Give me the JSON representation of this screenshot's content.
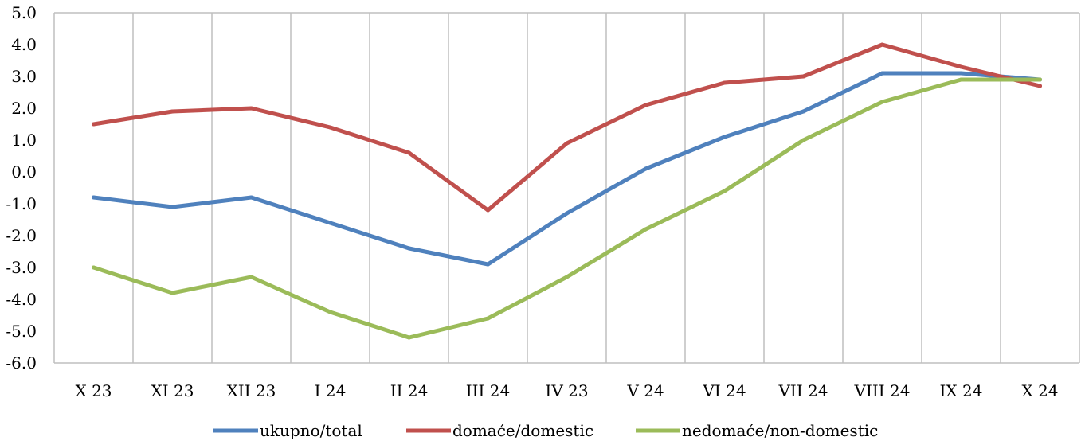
{
  "chart_data": {
    "type": "line",
    "categories": [
      "X 23",
      "XI 23",
      "XII 23",
      "I 24",
      "II 24",
      "III 24",
      "IV 23",
      "V 24",
      "VI 24",
      "VII 24",
      "VIII 24",
      "IX 24",
      "X 24"
    ],
    "series": [
      {
        "name": "ukupno/total",
        "color": "#4F81BD",
        "values": [
          -0.8,
          -1.1,
          -0.8,
          -1.6,
          -2.4,
          -2.9,
          -1.3,
          0.1,
          1.1,
          1.9,
          3.1,
          3.1,
          2.9
        ]
      },
      {
        "name": "domaće/domestic",
        "color": "#C0504D",
        "values": [
          1.5,
          1.9,
          2.0,
          1.4,
          0.6,
          -1.2,
          0.9,
          2.1,
          2.8,
          3.0,
          4.0,
          3.3,
          2.7
        ]
      },
      {
        "name": "nedomaće/non-domestic",
        "color": "#9BBB59",
        "values": [
          -3.0,
          -3.8,
          -3.3,
          -4.4,
          -5.2,
          -4.6,
          -3.3,
          -1.8,
          -0.6,
          1.0,
          2.2,
          2.9,
          2.9
        ]
      }
    ],
    "ylim": [
      -6.0,
      5.0
    ],
    "yticks": [
      "5.0",
      "4.0",
      "3.0",
      "2.0",
      "1.0",
      "0.0",
      "-1.0",
      "-2.0",
      "-3.0",
      "-4.0",
      "-5.0",
      "-6.0"
    ],
    "grid": "vertical",
    "legend_position": "bottom",
    "title": "",
    "xlabel": "",
    "ylabel": ""
  }
}
